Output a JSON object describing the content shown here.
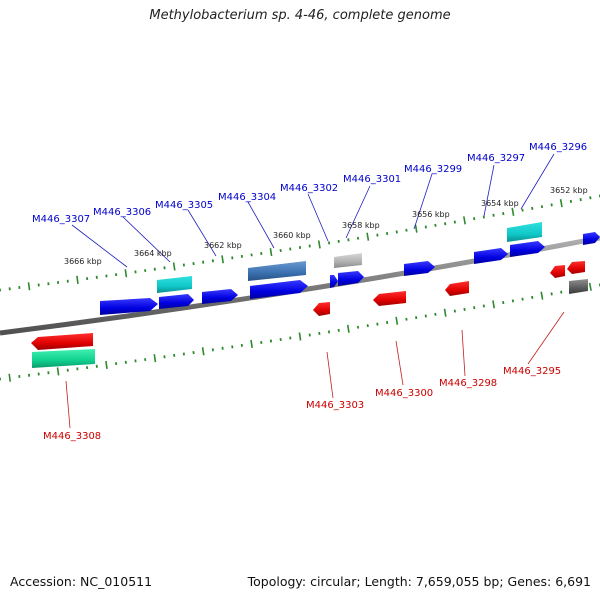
{
  "title": "Methylobacterium sp. 4-46, complete genome",
  "accession": "Accession: NC_010511",
  "summary": "Topology: circular; Length: 7,659,055 bp; Genes: 6,691",
  "colors": {
    "forward_label": "#0000cc",
    "reverse_label": "#cc0000",
    "backbone": "#808080",
    "tick": "#2d8a2d"
  },
  "ticks": [
    {
      "label": "3666 kbp"
    },
    {
      "label": "3664 kbp"
    },
    {
      "label": "3662 kbp"
    },
    {
      "label": "3660 kbp"
    },
    {
      "label": "3658 kbp"
    },
    {
      "label": "3656 kbp"
    },
    {
      "label": "3654 kbp"
    },
    {
      "label": "3652 kbp"
    }
  ],
  "genes_forward": [
    {
      "label": "M446_3307"
    },
    {
      "label": "M446_3306"
    },
    {
      "label": "M446_3305"
    },
    {
      "label": "M446_3304"
    },
    {
      "label": "M446_3302"
    },
    {
      "label": "M446_3301"
    },
    {
      "label": "M446_3299"
    },
    {
      "label": "M446_3297"
    },
    {
      "label": "M446_3296"
    }
  ],
  "genes_reverse": [
    {
      "label": "M446_3308"
    },
    {
      "label": "M446_3303"
    },
    {
      "label": "M446_3300"
    },
    {
      "label": "M446_3298"
    },
    {
      "label": "M446_3295"
    }
  ]
}
